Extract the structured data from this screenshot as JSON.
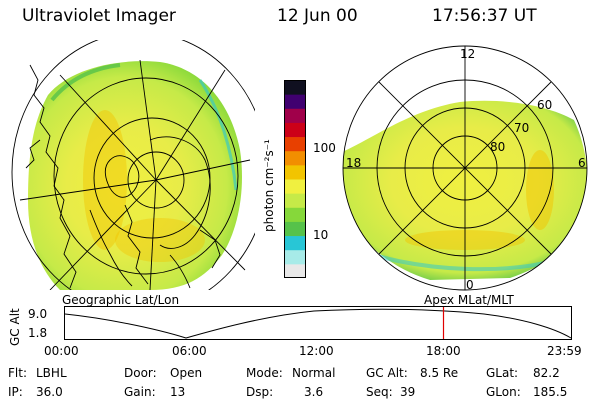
{
  "header": {
    "title": "Ultraviolet Imager",
    "date": "12 Jun 00",
    "time": "17:56:37 UT"
  },
  "geo_panel": {
    "label": "Geographic Lat/Lon"
  },
  "polar_panel": {
    "label": "Apex MLat/MLT",
    "lat_labels": [
      "60",
      "70",
      "80"
    ],
    "mlt_labels": [
      "12",
      "18",
      "6",
      "0"
    ]
  },
  "colorbar": {
    "unit_label": "photon cm⁻²s⁻¹",
    "ticks": [
      "100",
      "10"
    ],
    "colors": [
      "#e8e8e8",
      "#a7ebe8",
      "#28c6d6",
      "#56c24a",
      "#86d83a",
      "#c6ea48",
      "#f0f040",
      "#f2c400",
      "#f28e00",
      "#e84000",
      "#cc0018",
      "#a0004a",
      "#400070",
      "#101020"
    ]
  },
  "altitude_plot": {
    "ylabel": "GC Alt",
    "yticks": [
      "9.0",
      "1.8"
    ],
    "xticks": [
      "00:00",
      "06:00",
      "12:00",
      "18:00",
      "23:59"
    ],
    "current_time_fraction": 0.748
  },
  "status": {
    "flt_label": "Flt:",
    "flt_value": "LBHL",
    "ip_label": "IP:",
    "ip_value": "36.0",
    "door_label": "Door:",
    "door_value": "Open",
    "gain_label": "Gain:",
    "gain_value": "13",
    "mode_label": "Mode:",
    "mode_value": "Normal",
    "dsp_label": "Dsp:",
    "dsp_value": "3.6",
    "gcalt_label": "GC Alt:",
    "gcalt_value": "8.5 Re",
    "seq_label": "Seq:",
    "seq_value": "39",
    "glat_label": "GLat:",
    "glat_value": "82.2",
    "glon_label": "GLon:",
    "glon_value": "185.5"
  }
}
